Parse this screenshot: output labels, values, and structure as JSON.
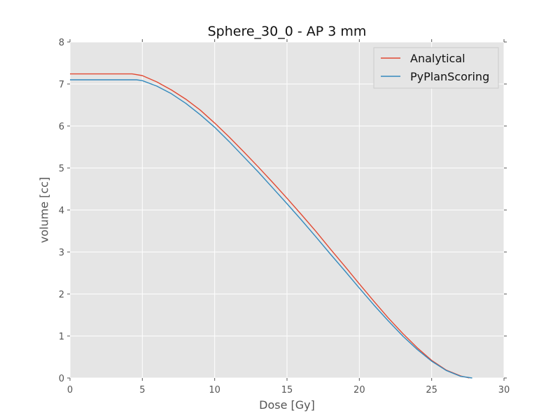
{
  "chart_data": {
    "type": "line",
    "title": "Sphere_30_0 - AP 3 mm",
    "xlabel": "Dose [Gy]",
    "ylabel": "volume [cc]",
    "xlim": [
      0,
      30
    ],
    "ylim": [
      0,
      8
    ],
    "x_ticks": [
      "0",
      "5",
      "10",
      "15",
      "20",
      "25",
      "30"
    ],
    "y_ticks": [
      "0",
      "1",
      "2",
      "3",
      "4",
      "5",
      "6",
      "7",
      "8"
    ],
    "grid": true,
    "legend_position": "top-right",
    "background_color": "#e5e5e5",
    "series": [
      {
        "name": "Analytical",
        "color": "#e24a33",
        "points": [
          [
            0,
            7.24
          ],
          [
            4.3,
            7.24
          ],
          [
            5,
            7.2
          ],
          [
            6,
            7.05
          ],
          [
            7,
            6.86
          ],
          [
            8,
            6.64
          ],
          [
            9,
            6.38
          ],
          [
            10,
            6.07
          ],
          [
            11,
            5.74
          ],
          [
            12,
            5.39
          ],
          [
            13,
            5.03
          ],
          [
            14,
            4.66
          ],
          [
            15,
            4.28
          ],
          [
            16,
            3.89
          ],
          [
            17,
            3.49
          ],
          [
            18,
            3.07
          ],
          [
            19,
            2.66
          ],
          [
            20,
            2.24
          ],
          [
            21,
            1.83
          ],
          [
            22,
            1.43
          ],
          [
            23,
            1.06
          ],
          [
            24,
            0.72
          ],
          [
            25,
            0.42
          ],
          [
            26,
            0.19
          ],
          [
            27,
            0.05
          ],
          [
            27.6,
            0.0
          ]
        ]
      },
      {
        "name": "PyPlanScoring",
        "color": "#348abd",
        "points": [
          [
            0,
            7.1
          ],
          [
            4.6,
            7.1
          ],
          [
            5,
            7.08
          ],
          [
            6,
            6.95
          ],
          [
            7,
            6.77
          ],
          [
            8,
            6.54
          ],
          [
            9,
            6.27
          ],
          [
            10,
            5.97
          ],
          [
            11,
            5.63
          ],
          [
            12,
            5.27
          ],
          [
            13,
            4.91
          ],
          [
            14,
            4.53
          ],
          [
            15,
            4.15
          ],
          [
            16,
            3.76
          ],
          [
            17,
            3.36
          ],
          [
            18,
            2.95
          ],
          [
            19,
            2.55
          ],
          [
            20,
            2.14
          ],
          [
            21,
            1.74
          ],
          [
            22,
            1.36
          ],
          [
            23,
            1.0
          ],
          [
            24,
            0.68
          ],
          [
            25,
            0.4
          ],
          [
            26,
            0.18
          ],
          [
            27,
            0.04
          ],
          [
            27.8,
            0.0
          ]
        ]
      }
    ]
  }
}
